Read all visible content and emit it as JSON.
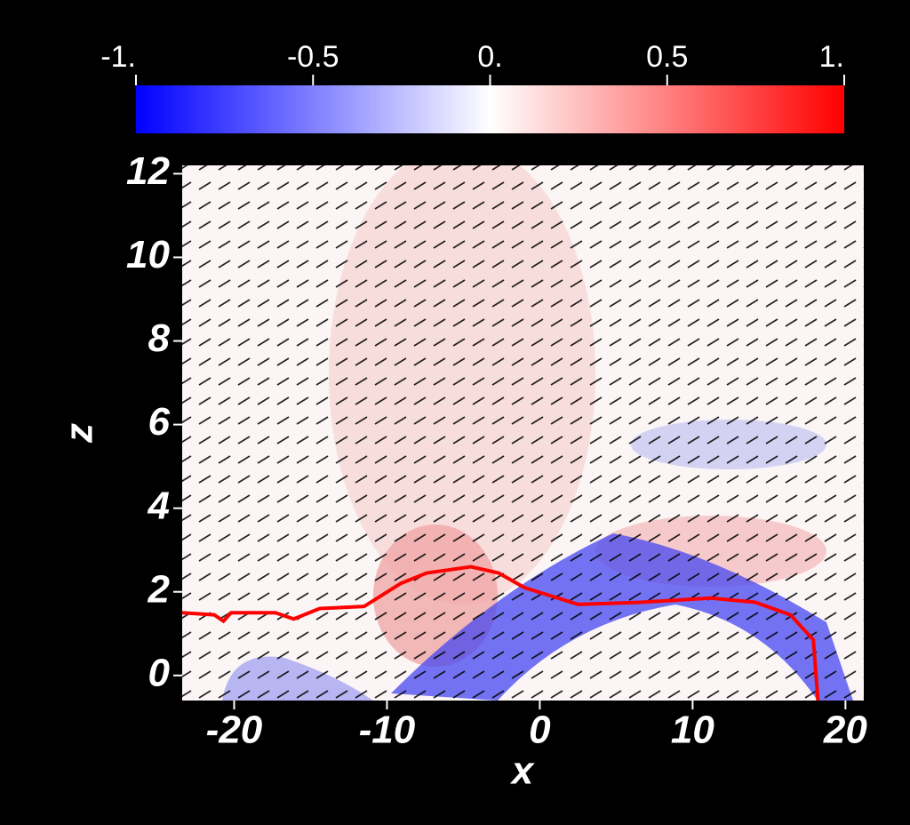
{
  "chart_data": {
    "type": "line",
    "xlabel": "x",
    "ylabel": "z",
    "xlim": [
      -23.4,
      21.2
    ],
    "ylim": [
      -0.6,
      12.2
    ],
    "xticks": [
      -20,
      -10,
      0,
      10,
      20
    ],
    "yticks": [
      0,
      2,
      4,
      6,
      8,
      10,
      12
    ],
    "colorbar": {
      "lim": [
        -1,
        1
      ],
      "colors": [
        "#0000ff",
        "#ffffff",
        "#ff0000"
      ],
      "ticks": [
        {
          "value": -1,
          "label": "-1."
        },
        {
          "value": -0.5,
          "label": "-0.5"
        },
        {
          "value": 0,
          "label": "0."
        },
        {
          "value": 0.5,
          "label": "0.5"
        },
        {
          "value": 1,
          "label": "1."
        }
      ]
    },
    "series": [
      {
        "color": "#ff0000",
        "x": [
          -23.4,
          -21.3,
          -20.7,
          -20.2,
          -17.3,
          -16.1,
          -14.4,
          -11.5,
          -9.1,
          -7.4,
          -4.5,
          -2.7,
          -1.0,
          2.5,
          6.6,
          11.2,
          14.1,
          16.4,
          17.9,
          18.2
        ],
        "values": [
          1.5,
          1.45,
          1.3,
          1.5,
          1.5,
          1.35,
          1.6,
          1.65,
          2.2,
          2.45,
          2.6,
          2.45,
          2.1,
          1.7,
          1.75,
          1.85,
          1.75,
          1.45,
          0.85,
          -0.6
        ]
      }
    ]
  }
}
